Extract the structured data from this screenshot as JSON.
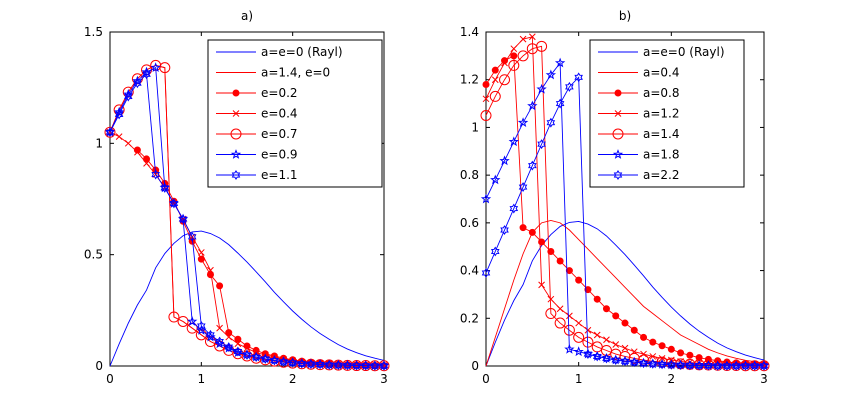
{
  "chart_data": [
    {
      "type": "line",
      "title": "a)",
      "xlim": [
        0,
        3
      ],
      "ylim": [
        0,
        1.5
      ],
      "x_ticks": [
        0,
        1,
        2,
        3
      ],
      "y_ticks": [
        0,
        0.5,
        1,
        1.5
      ],
      "x_tick_labels": [
        "0",
        "1",
        "2",
        "3"
      ],
      "y_tick_labels": [
        "0",
        "0.5",
        "1",
        "1.5"
      ],
      "legend_position": "top-right",
      "series": [
        {
          "name": "a=e=0 (Rayl)",
          "color": "#0000ff",
          "marker": "none",
          "x": [
            0,
            0.1,
            0.2,
            0.3,
            0.4,
            0.5,
            0.6,
            0.7,
            0.8,
            0.9,
            1.0,
            1.1,
            1.2,
            1.3,
            1.4,
            1.5,
            1.6,
            1.7,
            1.8,
            1.9,
            2.0,
            2.1,
            2.2,
            2.3,
            2.4,
            2.5,
            2.6,
            2.7,
            2.8,
            2.9,
            3.0
          ],
          "y": [
            0,
            0.099,
            0.192,
            0.274,
            0.341,
            0.441,
            0.505,
            0.551,
            0.585,
            0.602,
            0.606,
            0.595,
            0.575,
            0.545,
            0.507,
            0.467,
            0.423,
            0.378,
            0.331,
            0.288,
            0.247,
            0.21,
            0.176,
            0.146,
            0.12,
            0.096,
            0.076,
            0.06,
            0.046,
            0.035,
            0.025
          ]
        },
        {
          "name": "a=1.4, e=0",
          "color": "#ff0000",
          "marker": "none",
          "x": [
            0,
            0.1,
            0.2,
            0.3,
            0.4,
            0.5,
            0.6,
            0.7,
            0.8,
            0.9,
            1.0,
            1.1,
            1.2,
            1.3,
            1.4,
            1.5,
            1.6,
            1.7,
            1.8,
            1.9,
            2.0,
            2.1,
            2.2,
            2.3,
            2.4,
            2.5,
            2.6,
            2.7,
            2.8,
            2.9,
            3.0
          ],
          "y": [
            1.05,
            1.15,
            1.23,
            1.29,
            1.33,
            1.35,
            1.34,
            0.22,
            0.2,
            0.17,
            0.14,
            0.11,
            0.09,
            0.07,
            0.055,
            0.045,
            0.035,
            0.028,
            0.022,
            0.017,
            0.013,
            0.01,
            0.008,
            0.006,
            0.005,
            0.004,
            0.003,
            0.002,
            0.002,
            0.001,
            0.001
          ]
        },
        {
          "name": "e=0.2",
          "color": "#ff0000",
          "marker": "dot",
          "x": [
            0.3,
            0.4,
            0.5,
            0.6,
            0.7,
            0.8,
            0.9,
            1.0,
            1.1,
            1.2,
            1.3,
            1.4,
            1.5,
            1.6,
            1.7,
            1.8,
            1.9,
            2.0,
            2.1,
            2.2,
            2.3,
            2.4,
            2.5,
            2.6,
            2.7,
            2.8,
            2.9,
            3.0
          ],
          "y": [
            0.97,
            0.93,
            0.88,
            0.82,
            0.74,
            0.65,
            0.56,
            0.48,
            0.41,
            0.36,
            0.15,
            0.12,
            0.09,
            0.07,
            0.055,
            0.045,
            0.035,
            0.028,
            0.022,
            0.017,
            0.013,
            0.01,
            0.008,
            0.006,
            0.005,
            0.004,
            0.003,
            0.002
          ]
        },
        {
          "name": "e=0.4",
          "color": "#ff0000",
          "marker": "x",
          "x": [
            0,
            0.1,
            0.2,
            0.3,
            0.4,
            0.5,
            0.6,
            0.7,
            0.8,
            0.9,
            1.0,
            1.1,
            1.2,
            1.3,
            1.4,
            1.5,
            1.6,
            1.7,
            1.8,
            1.9,
            2.0,
            2.1,
            2.2,
            2.3,
            2.4,
            2.5,
            2.6,
            2.7,
            2.8,
            2.9,
            3.0
          ],
          "y": [
            1.05,
            1.03,
            1.0,
            0.96,
            0.91,
            0.86,
            0.8,
            0.73,
            0.66,
            0.58,
            0.51,
            0.43,
            0.17,
            0.13,
            0.1,
            0.08,
            0.06,
            0.05,
            0.04,
            0.03,
            0.024,
            0.018,
            0.014,
            0.011,
            0.008,
            0.006,
            0.005,
            0.004,
            0.003,
            0.002,
            0.002
          ]
        },
        {
          "name": "e=0.7",
          "color": "#ff0000",
          "marker": "circle",
          "x": [
            0,
            0.1,
            0.2,
            0.3,
            0.4,
            0.5,
            0.6,
            0.7,
            0.8,
            0.9,
            1.0,
            1.1,
            1.2,
            1.3,
            1.4,
            1.5,
            1.6,
            1.7,
            1.8,
            1.9,
            2.0,
            2.1,
            2.2,
            2.3,
            2.4,
            2.5,
            2.6,
            2.7,
            2.8,
            2.9,
            3.0
          ],
          "y": [
            1.05,
            1.15,
            1.23,
            1.29,
            1.33,
            1.35,
            1.34,
            0.22,
            0.2,
            0.17,
            0.14,
            0.11,
            0.09,
            0.07,
            0.055,
            0.045,
            0.035,
            0.028,
            0.022,
            0.017,
            0.013,
            0.01,
            0.008,
            0.006,
            0.005,
            0.004,
            0.003,
            0.002,
            0.002,
            0.001,
            0.001
          ]
        },
        {
          "name": "e=0.9",
          "color": "#0000ff",
          "marker": "star",
          "x": [
            0,
            0.1,
            0.2,
            0.3,
            0.4,
            0.5,
            0.6,
            0.7,
            0.8,
            0.9,
            1.0,
            1.1,
            1.2,
            1.3,
            1.4,
            1.5,
            1.6,
            1.7,
            1.8,
            1.9,
            2.0,
            2.1,
            2.2,
            2.3,
            2.4,
            2.5,
            2.6,
            2.7,
            2.8,
            2.9,
            3.0
          ],
          "y": [
            1.05,
            1.14,
            1.22,
            1.28,
            1.32,
            1.34,
            0.8,
            0.73,
            0.66,
            0.2,
            0.16,
            0.13,
            0.1,
            0.08,
            0.06,
            0.05,
            0.04,
            0.032,
            0.025,
            0.019,
            0.015,
            0.011,
            0.009,
            0.007,
            0.005,
            0.004,
            0.003,
            0.002,
            0.002,
            0.001,
            0.001
          ]
        },
        {
          "name": "e=1.1",
          "color": "#0000ff",
          "marker": "hexagram",
          "x": [
            0,
            0.1,
            0.2,
            0.3,
            0.4,
            0.5,
            0.6,
            0.7,
            0.8,
            0.9,
            1.0,
            1.1,
            1.2,
            1.3,
            1.4,
            1.5,
            1.6,
            1.7,
            1.8,
            1.9,
            2.0,
            2.1,
            2.2,
            2.3,
            2.4,
            2.5,
            2.6,
            2.7,
            2.8,
            2.9,
            3.0
          ],
          "y": [
            1.05,
            1.13,
            1.21,
            1.27,
            1.31,
            0.86,
            0.8,
            0.73,
            0.66,
            0.58,
            0.18,
            0.14,
            0.11,
            0.085,
            0.065,
            0.05,
            0.04,
            0.032,
            0.025,
            0.019,
            0.015,
            0.011,
            0.009,
            0.007,
            0.005,
            0.004,
            0.003,
            0.002,
            0.002,
            0.001,
            0.001
          ]
        }
      ]
    },
    {
      "type": "line",
      "title": "b)",
      "xlim": [
        0,
        3
      ],
      "ylim": [
        0,
        1.4
      ],
      "x_ticks": [
        0,
        1,
        2,
        3
      ],
      "y_ticks": [
        0,
        0.2,
        0.4,
        0.6,
        0.8,
        1,
        1.2,
        1.4
      ],
      "x_tick_labels": [
        "0",
        "1",
        "2",
        "3"
      ],
      "y_tick_labels": [
        "0",
        "0.2",
        "0.4",
        "0.6",
        "0.8",
        "1",
        "1.2",
        "1.4"
      ],
      "legend_position": "top-right",
      "series": [
        {
          "name": "a=e=0 (Rayl)",
          "color": "#0000ff",
          "marker": "none",
          "x": [
            0,
            0.1,
            0.2,
            0.3,
            0.4,
            0.5,
            0.6,
            0.7,
            0.8,
            0.9,
            1.0,
            1.1,
            1.2,
            1.3,
            1.4,
            1.5,
            1.6,
            1.7,
            1.8,
            1.9,
            2.0,
            2.1,
            2.2,
            2.3,
            2.4,
            2.5,
            2.6,
            2.7,
            2.8,
            2.9,
            3.0
          ],
          "y": [
            0,
            0.099,
            0.192,
            0.274,
            0.341,
            0.441,
            0.505,
            0.551,
            0.585,
            0.602,
            0.606,
            0.595,
            0.575,
            0.545,
            0.507,
            0.467,
            0.423,
            0.378,
            0.331,
            0.288,
            0.247,
            0.21,
            0.176,
            0.146,
            0.12,
            0.096,
            0.076,
            0.06,
            0.046,
            0.035,
            0.025
          ]
        },
        {
          "name": "a=0.4",
          "color": "#ff0000",
          "marker": "none",
          "x": [
            0,
            0.1,
            0.2,
            0.3,
            0.4,
            0.5,
            0.6,
            0.7,
            0.8,
            0.9,
            1.0,
            1.1,
            1.2,
            1.3,
            1.4,
            1.5,
            1.6,
            1.7,
            1.8,
            1.9,
            2.0,
            2.1,
            2.2,
            2.3,
            2.4,
            2.5,
            2.6,
            2.7,
            2.8,
            2.9,
            3.0
          ],
          "y": [
            0,
            0.12,
            0.24,
            0.36,
            0.47,
            0.56,
            0.6,
            0.61,
            0.6,
            0.57,
            0.53,
            0.49,
            0.45,
            0.41,
            0.37,
            0.33,
            0.29,
            0.25,
            0.22,
            0.19,
            0.16,
            0.13,
            0.11,
            0.09,
            0.07,
            0.055,
            0.042,
            0.032,
            0.024,
            0.018,
            0.013
          ]
        },
        {
          "name": "a=0.8",
          "color": "#ff0000",
          "marker": "dot",
          "x": [
            0,
            0.1,
            0.2,
            0.3,
            0.4,
            0.5,
            0.6,
            0.7,
            0.8,
            0.9,
            1.0,
            1.1,
            1.2,
            1.3,
            1.4,
            1.5,
            1.6,
            1.7,
            1.8,
            1.9,
            2.0,
            2.1,
            2.2,
            2.3,
            2.4,
            2.5,
            2.6,
            2.7,
            2.8,
            2.9,
            3.0
          ],
          "y": [
            1.18,
            1.24,
            1.28,
            1.3,
            0.58,
            0.56,
            0.52,
            0.48,
            0.44,
            0.4,
            0.36,
            0.32,
            0.28,
            0.24,
            0.21,
            0.18,
            0.15,
            0.12,
            0.1,
            0.085,
            0.07,
            0.055,
            0.045,
            0.035,
            0.028,
            0.022,
            0.017,
            0.013,
            0.01,
            0.008,
            0.006
          ]
        },
        {
          "name": "a=1.2",
          "color": "#ff0000",
          "marker": "x",
          "x": [
            0,
            0.1,
            0.2,
            0.3,
            0.4,
            0.5,
            0.6,
            0.7,
            0.8,
            0.9,
            1.0,
            1.1,
            1.2,
            1.3,
            1.4,
            1.5,
            1.6,
            1.7,
            1.8,
            1.9,
            2.0,
            2.1,
            2.2,
            2.3,
            2.4,
            2.5,
            2.6,
            2.7,
            2.8,
            2.9,
            3.0
          ],
          "y": [
            1.12,
            1.2,
            1.27,
            1.33,
            1.37,
            1.38,
            0.34,
            0.28,
            0.24,
            0.21,
            0.18,
            0.15,
            0.13,
            0.11,
            0.09,
            0.075,
            0.06,
            0.05,
            0.04,
            0.032,
            0.025,
            0.019,
            0.015,
            0.011,
            0.008,
            0.006,
            0.005,
            0.004,
            0.003,
            0.002,
            0.002
          ]
        },
        {
          "name": "a=1.4",
          "color": "#ff0000",
          "marker": "circle",
          "x": [
            0,
            0.1,
            0.2,
            0.3,
            0.4,
            0.5,
            0.6,
            0.7,
            0.8,
            0.9,
            1.0,
            1.1,
            1.2,
            1.3,
            1.4,
            1.5,
            1.6,
            1.7,
            1.8,
            1.9,
            2.0,
            2.1,
            2.2,
            2.3,
            2.4,
            2.5,
            2.6,
            2.7,
            2.8,
            2.9,
            3.0
          ],
          "y": [
            1.05,
            1.13,
            1.2,
            1.26,
            1.3,
            1.33,
            1.34,
            0.22,
            0.18,
            0.15,
            0.12,
            0.1,
            0.08,
            0.065,
            0.05,
            0.04,
            0.032,
            0.025,
            0.02,
            0.016,
            0.012,
            0.009,
            0.007,
            0.005,
            0.004,
            0.003,
            0.002,
            0.002,
            0.001,
            0.001,
            0.001
          ]
        },
        {
          "name": "a=1.8",
          "color": "#0000ff",
          "marker": "star",
          "x": [
            0,
            0.1,
            0.2,
            0.3,
            0.4,
            0.5,
            0.6,
            0.7,
            0.8,
            0.9,
            1.0,
            1.1,
            1.2,
            1.3,
            1.4,
            1.5,
            1.6,
            1.7,
            1.8,
            1.9,
            2.0,
            2.1,
            2.2,
            2.3,
            2.4,
            2.5,
            2.6,
            2.7,
            2.8,
            2.9,
            3.0
          ],
          "y": [
            0.7,
            0.78,
            0.86,
            0.94,
            1.02,
            1.09,
            1.16,
            1.22,
            1.27,
            0.07,
            0.06,
            0.05,
            0.04,
            0.032,
            0.025,
            0.02,
            0.016,
            0.012,
            0.009,
            0.007,
            0.005,
            0.004,
            0.003,
            0.002,
            0.002,
            0.001,
            0.001,
            0.001,
            0.001,
            0.001,
            0.001
          ]
        },
        {
          "name": "a=2.2",
          "color": "#0000ff",
          "marker": "hexagram",
          "x": [
            0,
            0.1,
            0.2,
            0.3,
            0.4,
            0.5,
            0.6,
            0.7,
            0.8,
            0.9,
            1.0,
            1.1,
            1.2,
            1.3,
            1.4,
            1.5,
            1.6,
            1.7,
            1.8,
            1.9,
            2.0,
            2.1,
            2.2,
            2.3,
            2.4,
            2.5,
            2.6,
            2.7,
            2.8,
            2.9,
            3.0
          ],
          "y": [
            0.39,
            0.48,
            0.57,
            0.66,
            0.75,
            0.84,
            0.93,
            1.02,
            1.1,
            1.17,
            1.21,
            0.05,
            0.04,
            0.032,
            0.025,
            0.02,
            0.016,
            0.012,
            0.009,
            0.007,
            0.005,
            0.004,
            0.003,
            0.002,
            0.002,
            0.001,
            0.001,
            0.001,
            0.001,
            0.001,
            0.001
          ]
        }
      ]
    }
  ]
}
